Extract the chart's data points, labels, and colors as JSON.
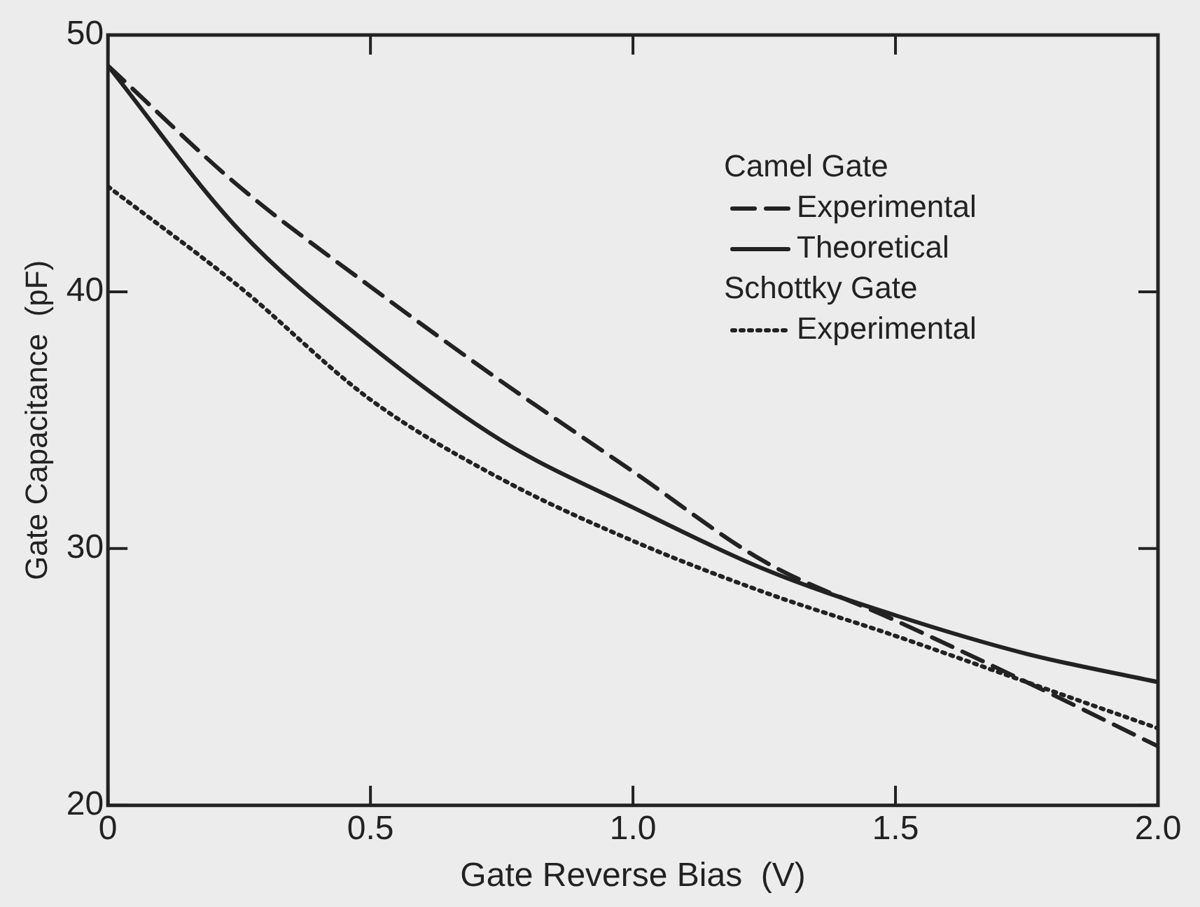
{
  "chart_data": {
    "type": "line",
    "xlabel": "Gate Reverse Bias  (V)",
    "ylabel": "Gate Capacitance  (pF)",
    "x": [
      0,
      0.25,
      0.5,
      0.75,
      1.0,
      1.25,
      1.5,
      1.75,
      2.0
    ],
    "series": [
      {
        "name": "Experimental",
        "color": "#222222",
        "line_style": "dashed",
        "values": [
          48.8,
          44.1,
          40.2,
          36.5,
          33.0,
          29.5,
          27.2,
          24.8,
          22.3
        ]
      },
      {
        "name": "Theoretical",
        "color": "#222222",
        "line_style": "solid",
        "values": [
          48.8,
          42.4,
          37.9,
          34.2,
          31.6,
          29.2,
          27.4,
          25.9,
          24.8
        ]
      },
      {
        "name": "Experimental",
        "color": "#222222",
        "line_style": "dotted",
        "values": [
          44.1,
          40.2,
          35.8,
          32.7,
          30.3,
          28.3,
          26.6,
          24.8,
          23.0
        ]
      }
    ],
    "annotations": [
      "Camel Gate",
      "Schottky Gate"
    ],
    "xlim": [
      0,
      2
    ],
    "xticks": [
      0,
      0.5,
      {
        "value": 1,
        "label": "1.0"
      },
      1.5,
      {
        "value": 2,
        "label": "2.0"
      }
    ],
    "ylim": [
      20,
      50
    ],
    "yticks": [
      20,
      30,
      40,
      50
    ],
    "legend": "top right",
    "marker": "none",
    "grid": false
  }
}
